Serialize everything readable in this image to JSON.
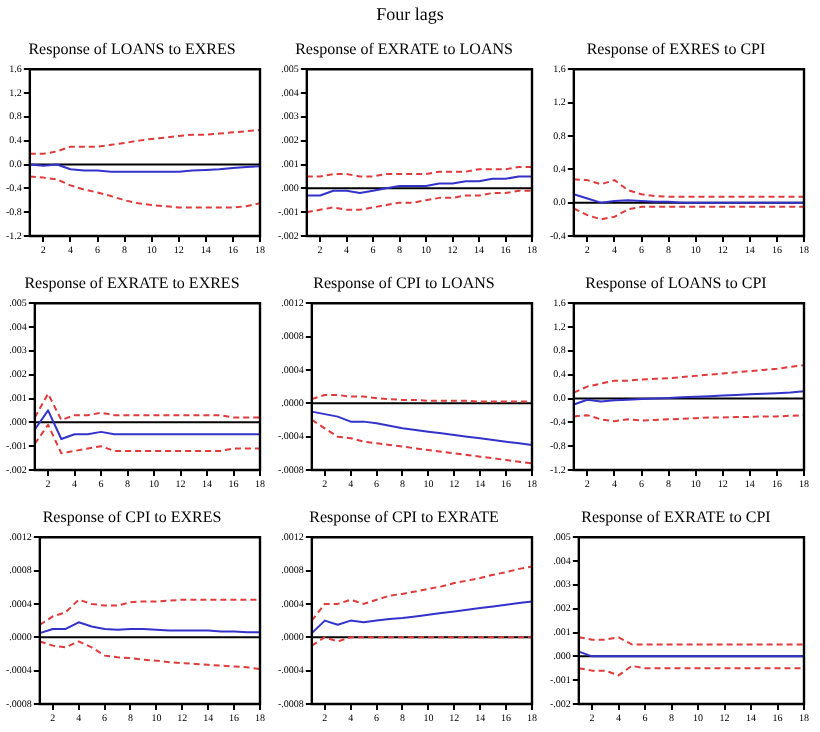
{
  "chart_data": [
    {
      "type": "line",
      "title": "Response of LOANS to EXRES",
      "annotations": [
        "Four lags"
      ],
      "x": [
        1,
        2,
        3,
        4,
        5,
        6,
        7,
        8,
        9,
        10,
        11,
        12,
        13,
        14,
        15,
        16,
        17,
        18
      ],
      "xlim": [
        1,
        18
      ],
      "xticks": [
        2,
        4,
        6,
        8,
        10,
        12,
        14,
        16,
        18
      ],
      "ylim": [
        -1.2,
        1.6
      ],
      "yticks": [
        -1.2,
        -0.8,
        -0.4,
        {
          "value": 0,
          "label": "0.0"
        },
        0.4,
        0.8,
        1.2,
        1.6
      ],
      "grid": false,
      "legend": false,
      "marker": "none",
      "ref_lines": [
        {
          "axis": "y",
          "value": 0,
          "color": "#000000"
        }
      ],
      "series": [
        {
          "color": "#3333cc",
          "line_style": "solid",
          "values": [
            0,
            -0.02,
            0,
            -0.08,
            -0.1,
            -0.1,
            -0.12,
            -0.12,
            -0.12,
            -0.12,
            -0.12,
            -0.12,
            -0.1,
            -0.09,
            -0.08,
            -0.06,
            -0.04,
            -0.03
          ]
        },
        {
          "color": "#e03a3a",
          "line_style": "dashed",
          "values": [
            0.18,
            0.18,
            0.22,
            0.3,
            0.3,
            0.3,
            0.33,
            0.36,
            0.4,
            0.43,
            0.45,
            0.48,
            0.5,
            0.5,
            0.52,
            0.54,
            0.56,
            0.58
          ]
        },
        {
          "color": "#e03a3a",
          "line_style": "dashed",
          "values": [
            -0.2,
            -0.22,
            -0.25,
            -0.35,
            -0.42,
            -0.47,
            -0.53,
            -0.6,
            -0.65,
            -0.68,
            -0.7,
            -0.72,
            -0.72,
            -0.72,
            -0.72,
            -0.72,
            -0.7,
            -0.65
          ]
        }
      ]
    },
    {
      "type": "line",
      "title": "Response of EXRATE to LOANS",
      "x": [
        1,
        2,
        3,
        4,
        5,
        6,
        7,
        8,
        9,
        10,
        11,
        12,
        13,
        14,
        15,
        16,
        17,
        18
      ],
      "xlim": [
        1,
        18
      ],
      "xticks": [
        2,
        4,
        6,
        8,
        10,
        12,
        14,
        16,
        18
      ],
      "ylim": [
        -0.002,
        0.005
      ],
      "yticks": [
        {
          "value": -0.002,
          "label": "-.002"
        },
        {
          "value": -0.001,
          "label": "-.001"
        },
        {
          "value": 0,
          "label": ".000"
        },
        {
          "value": 0.001,
          "label": ".001"
        },
        {
          "value": 0.002,
          "label": ".002"
        },
        {
          "value": 0.003,
          "label": ".003"
        },
        {
          "value": 0.004,
          "label": ".004"
        },
        {
          "value": 0.005,
          "label": ".005"
        }
      ],
      "grid": false,
      "legend": false,
      "marker": "none",
      "ref_lines": [
        {
          "axis": "y",
          "value": 0,
          "color": "#000000"
        }
      ],
      "series": [
        {
          "color": "#3333cc",
          "line_style": "solid",
          "values": [
            -0.0003,
            -0.0003,
            -0.0001,
            -0.0001,
            -0.0002,
            -0.0001,
            0,
            0.0001,
            0.0001,
            0.0001,
            0.0002,
            0.0002,
            0.0003,
            0.0003,
            0.0004,
            0.0004,
            0.0005,
            0.0005
          ]
        },
        {
          "color": "#e03a3a",
          "line_style": "dashed",
          "values": [
            0.0005,
            0.0005,
            0.0006,
            0.0006,
            0.0005,
            0.0005,
            0.0006,
            0.0006,
            0.0006,
            0.0006,
            0.0007,
            0.0007,
            0.0007,
            0.0008,
            0.0008,
            0.0008,
            0.0009,
            0.0009
          ]
        },
        {
          "color": "#e03a3a",
          "line_style": "dashed",
          "values": [
            -0.001,
            -0.0009,
            -0.0008,
            -0.0009,
            -0.0009,
            -0.0008,
            -0.0007,
            -0.0006,
            -0.0006,
            -0.0005,
            -0.0004,
            -0.0004,
            -0.0003,
            -0.0003,
            -0.0002,
            -0.0002,
            -0.0001,
            -0.0001
          ]
        }
      ]
    },
    {
      "type": "line",
      "title": "Response of EXRES to CPI",
      "x": [
        1,
        2,
        3,
        4,
        5,
        6,
        7,
        8,
        9,
        10,
        11,
        12,
        13,
        14,
        15,
        16,
        17,
        18
      ],
      "xlim": [
        1,
        18
      ],
      "xticks": [
        2,
        4,
        6,
        8,
        10,
        12,
        14,
        16,
        18
      ],
      "ylim": [
        -0.4,
        1.6
      ],
      "yticks": [
        -0.4,
        {
          "value": 0,
          "label": "0.0"
        },
        0.4,
        0.8,
        1.2,
        1.6
      ],
      "grid": false,
      "legend": false,
      "marker": "none",
      "ref_lines": [
        {
          "axis": "y",
          "value": 0,
          "color": "#000000"
        }
      ],
      "series": [
        {
          "color": "#3333cc",
          "line_style": "solid",
          "values": [
            0.1,
            0.05,
            0,
            0.02,
            0.03,
            0.02,
            0.01,
            0.01,
            0,
            0,
            0,
            0,
            0,
            0,
            0,
            0,
            0,
            0
          ]
        },
        {
          "color": "#e03a3a",
          "line_style": "dashed",
          "values": [
            0.28,
            0.27,
            0.22,
            0.27,
            0.15,
            0.1,
            0.08,
            0.07,
            0.07,
            0.07,
            0.07,
            0.07,
            0.07,
            0.07,
            0.07,
            0.07,
            0.07,
            0.07
          ]
        },
        {
          "color": "#e03a3a",
          "line_style": "dashed",
          "values": [
            -0.07,
            -0.15,
            -0.2,
            -0.17,
            -0.08,
            -0.05,
            -0.05,
            -0.05,
            -0.05,
            -0.05,
            -0.05,
            -0.05,
            -0.05,
            -0.05,
            -0.05,
            -0.05,
            -0.05,
            -0.05
          ]
        }
      ]
    },
    {
      "type": "line",
      "title": "Response of EXRATE to EXRES",
      "x": [
        1,
        2,
        3,
        4,
        5,
        6,
        7,
        8,
        9,
        10,
        11,
        12,
        13,
        14,
        15,
        16,
        17,
        18
      ],
      "xlim": [
        1,
        18
      ],
      "xticks": [
        2,
        4,
        6,
        8,
        10,
        12,
        14,
        16,
        18
      ],
      "ylim": [
        -0.002,
        0.005
      ],
      "yticks": [
        {
          "value": -0.002,
          "label": "-.002"
        },
        {
          "value": -0.001,
          "label": "-.001"
        },
        {
          "value": 0,
          "label": ".000"
        },
        {
          "value": 0.001,
          "label": ".001"
        },
        {
          "value": 0.002,
          "label": ".002"
        },
        {
          "value": 0.003,
          "label": ".003"
        },
        {
          "value": 0.004,
          "label": ".004"
        },
        {
          "value": 0.005,
          "label": ".005"
        }
      ],
      "grid": false,
      "legend": false,
      "marker": "none",
      "ref_lines": [
        {
          "axis": "y",
          "value": 0,
          "color": "#000000"
        }
      ],
      "series": [
        {
          "color": "#3333cc",
          "line_style": "solid",
          "values": [
            -0.0003,
            0.0005,
            -0.0007,
            -0.0005,
            -0.0005,
            -0.0004,
            -0.0005,
            -0.0005,
            -0.0005,
            -0.0005,
            -0.0005,
            -0.0005,
            -0.0005,
            -0.0005,
            -0.0005,
            -0.0005,
            -0.0005,
            -0.0005
          ]
        },
        {
          "color": "#e03a3a",
          "line_style": "dashed",
          "values": [
            0.0002,
            0.0012,
            0.0001,
            0.0003,
            0.0003,
            0.0004,
            0.0003,
            0.0003,
            0.0003,
            0.0003,
            0.0003,
            0.0003,
            0.0003,
            0.0003,
            0.0003,
            0.0002,
            0.0002,
            0.0002
          ]
        },
        {
          "color": "#e03a3a",
          "line_style": "dashed",
          "values": [
            -0.0009,
            -0.0001,
            -0.0013,
            -0.0012,
            -0.0011,
            -0.001,
            -0.0012,
            -0.0012,
            -0.0012,
            -0.0012,
            -0.0012,
            -0.0012,
            -0.0012,
            -0.0012,
            -0.0012,
            -0.0011,
            -0.0011,
            -0.0011
          ]
        }
      ]
    },
    {
      "type": "line",
      "title": "Response of CPI to LOANS",
      "x": [
        1,
        2,
        3,
        4,
        5,
        6,
        7,
        8,
        9,
        10,
        11,
        12,
        13,
        14,
        15,
        16,
        17,
        18
      ],
      "xlim": [
        1,
        18
      ],
      "xticks": [
        2,
        4,
        6,
        8,
        10,
        12,
        14,
        16,
        18
      ],
      "ylim": [
        -0.0008,
        0.0012
      ],
      "yticks": [
        {
          "value": -0.0008,
          "label": "-.0008"
        },
        {
          "value": -0.0004,
          "label": "-.0004"
        },
        {
          "value": 0,
          "label": ".0000"
        },
        {
          "value": 0.0004,
          "label": ".0004"
        },
        {
          "value": 0.0008,
          "label": ".0008"
        },
        {
          "value": 0.0012,
          "label": ".0012"
        }
      ],
      "grid": false,
      "legend": false,
      "marker": "none",
      "ref_lines": [
        {
          "axis": "y",
          "value": 0,
          "color": "#000000"
        }
      ],
      "series": [
        {
          "color": "#3333cc",
          "line_style": "solid",
          "values": [
            -0.0001,
            -0.00013,
            -0.00016,
            -0.00022,
            -0.00022,
            -0.00024,
            -0.00027,
            -0.0003,
            -0.00032,
            -0.00034,
            -0.00036,
            -0.00038,
            -0.0004,
            -0.00042,
            -0.00044,
            -0.00046,
            -0.00048,
            -0.0005
          ]
        },
        {
          "color": "#e03a3a",
          "line_style": "dashed",
          "values": [
            5e-05,
            0.0001,
            0.0001,
            8e-05,
            8e-05,
            6e-05,
            5e-05,
            4e-05,
            4e-05,
            3e-05,
            3e-05,
            3e-05,
            3e-05,
            2e-05,
            2e-05,
            2e-05,
            2e-05,
            2e-05
          ]
        },
        {
          "color": "#e03a3a",
          "line_style": "dashed",
          "values": [
            -0.0002,
            -0.0003,
            -0.0004,
            -0.00042,
            -0.00046,
            -0.00048,
            -0.0005,
            -0.00052,
            -0.00054,
            -0.00056,
            -0.00058,
            -0.0006,
            -0.00062,
            -0.00064,
            -0.00066,
            -0.00068,
            -0.0007,
            -0.00072
          ]
        }
      ]
    },
    {
      "type": "line",
      "title": "Response of LOANS to CPI",
      "x": [
        1,
        2,
        3,
        4,
        5,
        6,
        7,
        8,
        9,
        10,
        11,
        12,
        13,
        14,
        15,
        16,
        17,
        18
      ],
      "xlim": [
        1,
        18
      ],
      "xticks": [
        2,
        4,
        6,
        8,
        10,
        12,
        14,
        16,
        18
      ],
      "ylim": [
        -1.2,
        1.6
      ],
      "yticks": [
        -1.2,
        -0.8,
        -0.4,
        {
          "value": 0,
          "label": "0.0"
        },
        0.4,
        0.8,
        1.2,
        1.6
      ],
      "grid": false,
      "legend": false,
      "marker": "none",
      "ref_lines": [
        {
          "axis": "y",
          "value": 0,
          "color": "#000000"
        }
      ],
      "series": [
        {
          "color": "#3333cc",
          "line_style": "solid",
          "values": [
            -0.1,
            -0.02,
            -0.05,
            -0.03,
            -0.02,
            -0.01,
            0,
            0.01,
            0.02,
            0.03,
            0.04,
            0.05,
            0.06,
            0.07,
            0.08,
            0.09,
            0.1,
            0.12
          ]
        },
        {
          "color": "#e03a3a",
          "line_style": "dashed",
          "values": [
            0.1,
            0.2,
            0.25,
            0.3,
            0.3,
            0.32,
            0.33,
            0.34,
            0.36,
            0.38,
            0.4,
            0.42,
            0.44,
            0.46,
            0.48,
            0.5,
            0.53,
            0.56
          ]
        },
        {
          "color": "#e03a3a",
          "line_style": "dashed",
          "values": [
            -0.3,
            -0.28,
            -0.35,
            -0.38,
            -0.35,
            -0.37,
            -0.36,
            -0.35,
            -0.34,
            -0.33,
            -0.32,
            -0.32,
            -0.31,
            -0.31,
            -0.3,
            -0.3,
            -0.29,
            -0.28
          ]
        }
      ]
    },
    {
      "type": "line",
      "title": "Response of CPI to EXRES",
      "x": [
        1,
        2,
        3,
        4,
        5,
        6,
        7,
        8,
        9,
        10,
        11,
        12,
        13,
        14,
        15,
        16,
        17,
        18
      ],
      "xlim": [
        1,
        18
      ],
      "xticks": [
        2,
        4,
        6,
        8,
        10,
        12,
        14,
        16,
        18
      ],
      "ylim": [
        -0.0008,
        0.0012
      ],
      "yticks": [
        {
          "value": -0.0008,
          "label": "-.0008"
        },
        {
          "value": -0.0004,
          "label": "-.0004"
        },
        {
          "value": 0,
          "label": ".0000"
        },
        {
          "value": 0.0004,
          "label": ".0004"
        },
        {
          "value": 0.0008,
          "label": ".0008"
        },
        {
          "value": 0.0012,
          "label": ".0012"
        }
      ],
      "grid": false,
      "legend": false,
      "marker": "none",
      "ref_lines": [
        {
          "axis": "y",
          "value": 0,
          "color": "#000000"
        }
      ],
      "series": [
        {
          "color": "#3333cc",
          "line_style": "solid",
          "values": [
            5e-05,
            0.0001,
            0.0001,
            0.00018,
            0.00013,
            0.0001,
            9e-05,
            0.0001,
            0.0001,
            9e-05,
            8e-05,
            8e-05,
            8e-05,
            8e-05,
            7e-05,
            7e-05,
            6e-05,
            6e-05
          ]
        },
        {
          "color": "#e03a3a",
          "line_style": "dashed",
          "values": [
            0.00015,
            0.00025,
            0.0003,
            0.00045,
            0.0004,
            0.00038,
            0.00038,
            0.00042,
            0.00043,
            0.00043,
            0.00044,
            0.00045,
            0.00045,
            0.00045,
            0.00045,
            0.00045,
            0.00045,
            0.00045
          ]
        },
        {
          "color": "#e03a3a",
          "line_style": "dashed",
          "values": [
            -5e-05,
            -0.0001,
            -0.00012,
            -5e-05,
            -0.00012,
            -0.00022,
            -0.00024,
            -0.00025,
            -0.00027,
            -0.00028,
            -0.0003,
            -0.00031,
            -0.00032,
            -0.00033,
            -0.00034,
            -0.00035,
            -0.00036,
            -0.00038
          ]
        }
      ]
    },
    {
      "type": "line",
      "title": "Response of CPI to EXRATE",
      "x": [
        1,
        2,
        3,
        4,
        5,
        6,
        7,
        8,
        9,
        10,
        11,
        12,
        13,
        14,
        15,
        16,
        17,
        18
      ],
      "xlim": [
        1,
        18
      ],
      "xticks": [
        2,
        4,
        6,
        8,
        10,
        12,
        14,
        16,
        18
      ],
      "ylim": [
        -0.0008,
        0.0012
      ],
      "yticks": [
        {
          "value": -0.0008,
          "label": "-.0008"
        },
        {
          "value": -0.0004,
          "label": "-.0004"
        },
        {
          "value": 0,
          "label": ".0000"
        },
        {
          "value": 0.0004,
          "label": ".0004"
        },
        {
          "value": 0.0008,
          "label": ".0008"
        },
        {
          "value": 0.0012,
          "label": ".0012"
        }
      ],
      "grid": false,
      "legend": false,
      "marker": "none",
      "ref_lines": [
        {
          "axis": "y",
          "value": 0,
          "color": "#000000"
        }
      ],
      "series": [
        {
          "color": "#3333cc",
          "line_style": "solid",
          "values": [
            5e-05,
            0.0002,
            0.00015,
            0.0002,
            0.00018,
            0.0002,
            0.00022,
            0.00023,
            0.00025,
            0.00027,
            0.00029,
            0.00031,
            0.00033,
            0.00035,
            0.00037,
            0.00039,
            0.00041,
            0.00043
          ]
        },
        {
          "color": "#e03a3a",
          "line_style": "dashed",
          "values": [
            0.0002,
            0.0004,
            0.0004,
            0.00045,
            0.0004,
            0.00045,
            0.0005,
            0.00052,
            0.00055,
            0.00058,
            0.00061,
            0.00065,
            0.00068,
            0.00071,
            0.00075,
            0.00078,
            0.00082,
            0.00085
          ]
        },
        {
          "color": "#e03a3a",
          "line_style": "dashed",
          "values": [
            -0.0001,
            0,
            -5e-05,
            0,
            0,
            0,
            0,
            0,
            0,
            0,
            0,
            0,
            0,
            0,
            0,
            0,
            0,
            0
          ]
        }
      ]
    },
    {
      "type": "line",
      "title": "Response of EXRATE to CPI",
      "x": [
        1,
        2,
        3,
        4,
        5,
        6,
        7,
        8,
        9,
        10,
        11,
        12,
        13,
        14,
        15,
        16,
        17,
        18
      ],
      "xlim": [
        1,
        18
      ],
      "xticks": [
        2,
        4,
        6,
        8,
        10,
        12,
        14,
        16,
        18
      ],
      "ylim": [
        -0.002,
        0.005
      ],
      "yticks": [
        {
          "value": -0.002,
          "label": "-.002"
        },
        {
          "value": -0.001,
          "label": "-.001"
        },
        {
          "value": 0,
          "label": ".000"
        },
        {
          "value": 0.001,
          "label": ".001"
        },
        {
          "value": 0.002,
          "label": ".002"
        },
        {
          "value": 0.003,
          "label": ".003"
        },
        {
          "value": 0.004,
          "label": ".004"
        },
        {
          "value": 0.005,
          "label": ".005"
        }
      ],
      "grid": false,
      "legend": false,
      "marker": "none",
      "ref_lines": [
        {
          "axis": "y",
          "value": 0,
          "color": "#000000"
        }
      ],
      "series": [
        {
          "color": "#3333cc",
          "line_style": "solid",
          "values": [
            0.0002,
            0,
            0,
            0,
            0,
            0,
            0,
            0,
            0,
            0,
            0,
            0,
            0,
            0,
            0,
            0,
            0,
            0
          ]
        },
        {
          "color": "#e03a3a",
          "line_style": "dashed",
          "values": [
            0.0008,
            0.0007,
            0.0007,
            0.0008,
            0.0005,
            0.0005,
            0.0005,
            0.0005,
            0.0005,
            0.0005,
            0.0005,
            0.0005,
            0.0005,
            0.0005,
            0.0005,
            0.0005,
            0.0005,
            0.0005
          ]
        },
        {
          "color": "#e03a3a",
          "line_style": "dashed",
          "values": [
            -0.0005,
            -0.0006,
            -0.0006,
            -0.0008,
            -0.0004,
            -0.0005,
            -0.0005,
            -0.0005,
            -0.0005,
            -0.0005,
            -0.0005,
            -0.0005,
            -0.0005,
            -0.0005,
            -0.0005,
            -0.0005,
            -0.0005,
            -0.0005
          ]
        }
      ]
    }
  ]
}
